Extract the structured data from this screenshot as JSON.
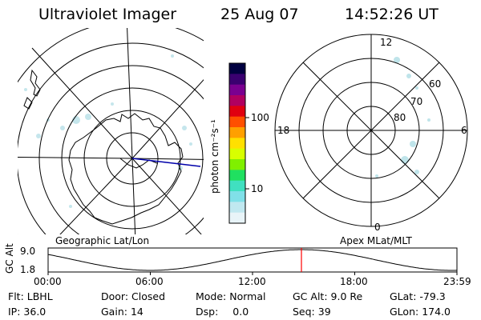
{
  "header": {
    "instrument": "Ultraviolet Imager",
    "date": "25 Aug 07",
    "time": "14:52:26 UT"
  },
  "geo_panel": {
    "label": "Geographic Lat/Lon"
  },
  "mag_panel": {
    "label": "Apex MLat/MLT",
    "mlt_labels": {
      "top": "12",
      "left": "18",
      "right": "6",
      "bottom": "0"
    },
    "lat_labels": [
      "60",
      "70",
      "80"
    ]
  },
  "colorbar": {
    "unit_label": "photon cm⁻²s⁻¹",
    "ticks": [
      "100",
      "10"
    ],
    "colors": [
      "#000040",
      "#3a0070",
      "#7a0090",
      "#b00060",
      "#e00010",
      "#ff5000",
      "#ffa000",
      "#ffe000",
      "#d8ff00",
      "#80f000",
      "#20e060",
      "#40e0c0",
      "#80e0e8",
      "#c0e8f0",
      "#e8f4f8"
    ]
  },
  "orbit_plot": {
    "ylabel": "GC Alt",
    "yticks": [
      "9.0",
      "1.8"
    ],
    "xticks": [
      "00:00",
      "06:00",
      "12:00",
      "18:00",
      "23:59"
    ],
    "current_time_hours": 14.87,
    "line_color": "#000000",
    "marker_color": "#ff0000"
  },
  "status": {
    "flt_label": "Flt:",
    "flt_value": "LBHL",
    "ip_label": "IP:",
    "ip_value": "36.0",
    "door_label": "Door:",
    "door_value": "Closed",
    "gain_label": "Gain:",
    "gain_value": "14",
    "mode_label": "Mode:",
    "mode_value": "Normal",
    "dsp_label": "Dsp:",
    "dsp_value": "0.0",
    "gcalt_label": "GC Alt:",
    "gcalt_value": "9.0 Re",
    "seq_label": "Seq:",
    "seq_value": "39",
    "glat_label": "GLat:",
    "glat_value": "-79.3",
    "glon_label": "GLon:",
    "glon_value": "174.0"
  }
}
